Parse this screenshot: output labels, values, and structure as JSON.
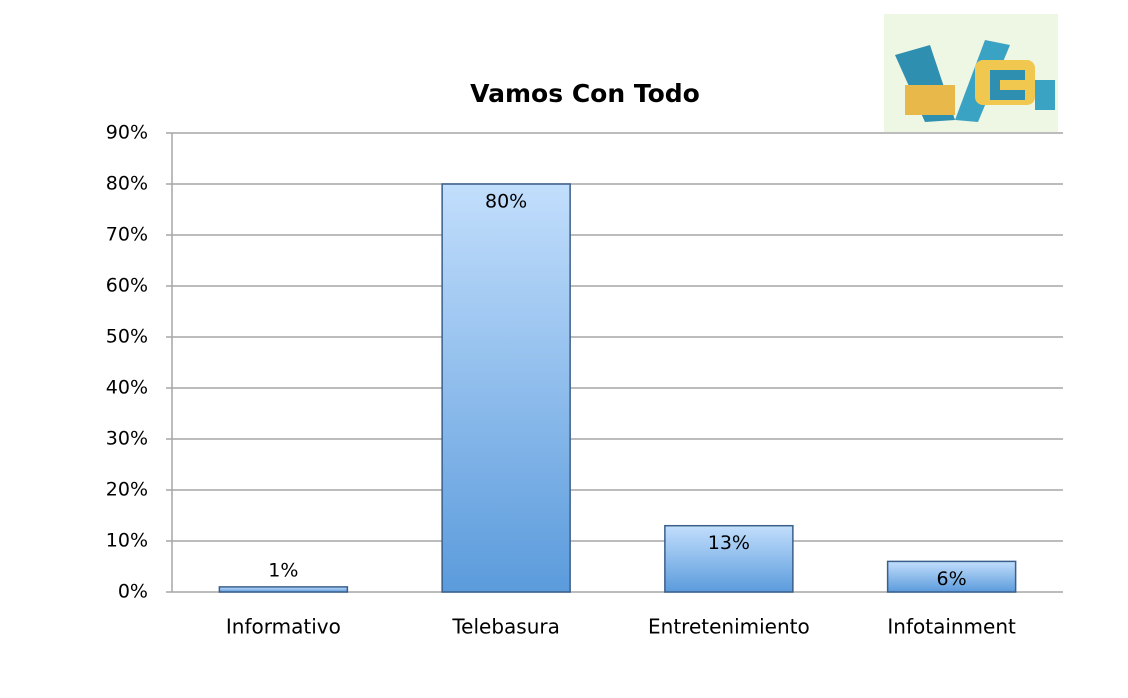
{
  "chart_data": {
    "type": "bar",
    "title": "Vamos Con Todo",
    "categories": [
      "Informativo",
      "Telebasura",
      "Entretenimiento",
      "Infotainment"
    ],
    "values": [
      1,
      80,
      13,
      6
    ],
    "value_labels": [
      "1%",
      "80%",
      "13%",
      "6%"
    ],
    "color": "#6fa8e8",
    "ylim": [
      0,
      90
    ],
    "yticks": [
      {
        "value": 0,
        "label": "0%"
      },
      {
        "value": 10,
        "label": "10%"
      },
      {
        "value": 20,
        "label": "20%"
      },
      {
        "value": 30,
        "label": "30%"
      },
      {
        "value": 40,
        "label": "40%"
      },
      {
        "value": 50,
        "label": "50%"
      },
      {
        "value": 60,
        "label": "60%"
      },
      {
        "value": 70,
        "label": "70%"
      },
      {
        "value": 80,
        "label": "80%"
      },
      {
        "value": 90,
        "label": "90%"
      }
    ],
    "grid": true
  }
}
